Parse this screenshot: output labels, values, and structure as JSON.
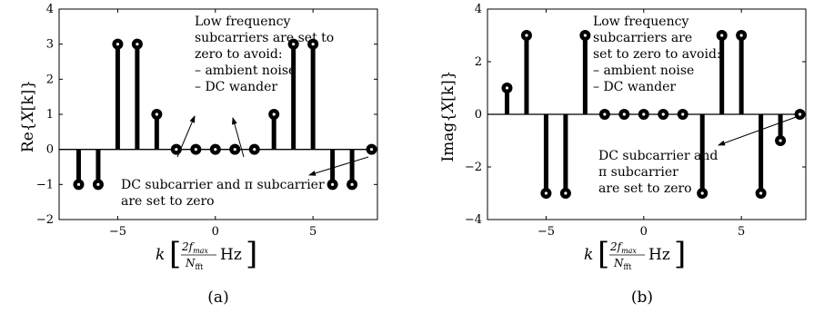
{
  "chart_data": [
    {
      "type": "stem",
      "panel": "(a)",
      "ylabel": "Re{X[k]}",
      "xlabel": "k [2f_max/N_fft Hz]",
      "xlim": [
        -8,
        8.3
      ],
      "ylim": [
        -2,
        4
      ],
      "xticks": [
        -5,
        0,
        5
      ],
      "yticks": [
        -2,
        -1,
        0,
        1,
        2,
        3,
        4
      ],
      "x": [
        -7,
        -6,
        -5,
        -4,
        -3,
        -2,
        -1,
        0,
        1,
        2,
        3,
        4,
        5,
        6,
        7,
        8
      ],
      "values": [
        -1,
        -1,
        3,
        3,
        1,
        0,
        0,
        0,
        0,
        0,
        1,
        3,
        3,
        -1,
        -1,
        0
      ],
      "annotations": [
        "Low frequency",
        "subcarriers are set to",
        "zero to avoid:",
        "– ambient noise",
        "– DC wander",
        "DC subcarrier and π subcarrier",
        "are set to zero"
      ]
    },
    {
      "type": "stem",
      "panel": "(b)",
      "ylabel": "Imag{X[k]}",
      "xlabel": "k [2f_max/N_fft Hz]",
      "xlim": [
        -8,
        8.3
      ],
      "ylim": [
        -4,
        4
      ],
      "xticks": [
        -5,
        0,
        5
      ],
      "yticks": [
        -4,
        -2,
        0,
        2,
        4
      ],
      "x": [
        -7,
        -6,
        -5,
        -4,
        -3,
        -2,
        -1,
        0,
        1,
        2,
        3,
        4,
        5,
        6,
        7,
        8
      ],
      "values": [
        1,
        3,
        -3,
        -3,
        3,
        0,
        0,
        0,
        0,
        0,
        -3,
        3,
        3,
        -3,
        -1,
        0
      ],
      "annotations": [
        "Low frequency",
        "subcarriers are",
        "set to zero to avoid:",
        "– ambient noise",
        "– DC wander",
        "DC subcarrier and",
        "π subcarrier",
        "are set to zero"
      ]
    }
  ],
  "labels": {
    "a": {
      "ylab_pre": "Re{",
      "ylab_var": "X",
      "ylab_k": "[k]",
      "ylab_post": "}",
      "xlab_k": "k",
      "frac_num": "2f",
      "frac_sub": "max",
      "frac_den": "N",
      "frac_den_sub": "fft",
      "unit": "Hz",
      "caption": "(a)"
    },
    "b": {
      "ylab_pre": "Imag{",
      "ylab_var": "X",
      "ylab_k": "[k]",
      "ylab_post": "}",
      "xlab_k": "k",
      "frac_num": "2f",
      "frac_sub": "max",
      "frac_den": "N",
      "frac_den_sub": "fft",
      "unit": "Hz",
      "caption": "(b)"
    }
  }
}
